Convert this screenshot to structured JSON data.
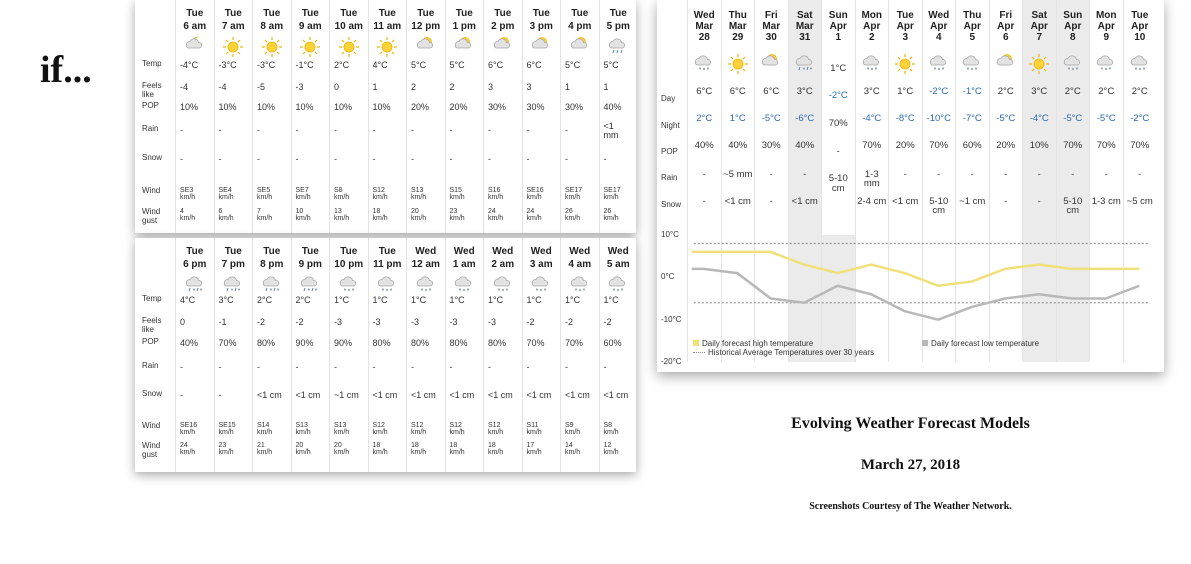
{
  "headline": "if...",
  "hourly_labels": {
    "temp": "Temp",
    "feels": "Feels like",
    "pop": "POP",
    "rain": "Rain",
    "snow": "Snow",
    "wind": "Wind",
    "gust": "Wind gust"
  },
  "hourly_panel_1": [
    {
      "day": "Tue",
      "time": "6 am",
      "icon": "night-partly-cloudy-icon",
      "temp": "-4°C",
      "feels": "-4",
      "pop": "10%",
      "rain": "-",
      "snow": "-",
      "wind": "SE3",
      "gust": "4"
    },
    {
      "day": "Tue",
      "time": "7 am",
      "icon": "sunny-icon",
      "temp": "-3°C",
      "feels": "-4",
      "pop": "10%",
      "rain": "-",
      "snow": "-",
      "wind": "SE4",
      "gust": "6"
    },
    {
      "day": "Tue",
      "time": "8 am",
      "icon": "sunny-icon",
      "temp": "-3°C",
      "feels": "-5",
      "pop": "10%",
      "rain": "-",
      "snow": "-",
      "wind": "SE5",
      "gust": "7"
    },
    {
      "day": "Tue",
      "time": "9 am",
      "icon": "sunny-icon",
      "temp": "-1°C",
      "feels": "-3",
      "pop": "10%",
      "rain": "-",
      "snow": "-",
      "wind": "SE7",
      "gust": "10"
    },
    {
      "day": "Tue",
      "time": "10 am",
      "icon": "sunny-icon",
      "temp": "2°C",
      "feels": "0",
      "pop": "10%",
      "rain": "-",
      "snow": "-",
      "wind": "S8",
      "gust": "13"
    },
    {
      "day": "Tue",
      "time": "11 am",
      "icon": "sunny-icon",
      "temp": "4°C",
      "feels": "1",
      "pop": "10%",
      "rain": "-",
      "snow": "-",
      "wind": "S12",
      "gust": "18"
    },
    {
      "day": "Tue",
      "time": "12 pm",
      "icon": "partly-cloudy-icon",
      "temp": "5°C",
      "feels": "2",
      "pop": "20%",
      "rain": "-",
      "snow": "-",
      "wind": "S13",
      "gust": "20"
    },
    {
      "day": "Tue",
      "time": "1 pm",
      "icon": "partly-cloudy-icon",
      "temp": "5°C",
      "feels": "2",
      "pop": "20%",
      "rain": "-",
      "snow": "-",
      "wind": "S15",
      "gust": "23"
    },
    {
      "day": "Tue",
      "time": "2 pm",
      "icon": "partly-cloudy-icon",
      "temp": "6°C",
      "feels": "3",
      "pop": "30%",
      "rain": "-",
      "snow": "-",
      "wind": "S16",
      "gust": "24"
    },
    {
      "day": "Tue",
      "time": "3 pm",
      "icon": "partly-cloudy-icon",
      "temp": "6°C",
      "feels": "3",
      "pop": "30%",
      "rain": "-",
      "snow": "-",
      "wind": "SE16",
      "gust": "24"
    },
    {
      "day": "Tue",
      "time": "4 pm",
      "icon": "partly-cloudy-icon",
      "temp": "5°C",
      "feels": "1",
      "pop": "30%",
      "rain": "-",
      "snow": "-",
      "wind": "SE17",
      "gust": "26"
    },
    {
      "day": "Tue",
      "time": "5 pm",
      "icon": "rain-cloud-icon",
      "temp": "5°C",
      "feels": "1",
      "pop": "40%",
      "rain": "<1 mm",
      "snow": "-",
      "wind": "SE17",
      "gust": "26"
    }
  ],
  "hourly_panel_2": [
    {
      "day": "Tue",
      "time": "6 pm",
      "icon": "rain-snow-icon",
      "temp": "4°C",
      "feels": "0",
      "pop": "40%",
      "rain": "-",
      "snow": "-",
      "wind": "SE16",
      "gust": "24"
    },
    {
      "day": "Tue",
      "time": "7 pm",
      "icon": "rain-snow-icon",
      "temp": "3°C",
      "feels": "-1",
      "pop": "70%",
      "rain": "-",
      "snow": "-",
      "wind": "SE15",
      "gust": "23"
    },
    {
      "day": "Tue",
      "time": "8 pm",
      "icon": "rain-snow-icon",
      "temp": "2°C",
      "feels": "-2",
      "pop": "80%",
      "rain": "-",
      "snow": "<1 cm",
      "wind": "S14",
      "gust": "21"
    },
    {
      "day": "Tue",
      "time": "9 pm",
      "icon": "rain-snow-icon",
      "temp": "2°C",
      "feels": "-2",
      "pop": "90%",
      "rain": "-",
      "snow": "<1 cm",
      "wind": "S13",
      "gust": "20"
    },
    {
      "day": "Tue",
      "time": "10 pm",
      "icon": "snow-cloud-icon",
      "temp": "1°C",
      "feels": "-3",
      "pop": "90%",
      "rain": "-",
      "snow": "~1 cm",
      "wind": "S13",
      "gust": "20"
    },
    {
      "day": "Tue",
      "time": "11 pm",
      "icon": "snow-cloud-icon",
      "temp": "1°C",
      "feels": "-3",
      "pop": "80%",
      "rain": "-",
      "snow": "<1 cm",
      "wind": "S12",
      "gust": "18"
    },
    {
      "day": "Wed",
      "time": "12 am",
      "icon": "snow-cloud-icon",
      "temp": "1°C",
      "feels": "-3",
      "pop": "80%",
      "rain": "-",
      "snow": "<1 cm",
      "wind": "S12",
      "gust": "18"
    },
    {
      "day": "Wed",
      "time": "1 am",
      "icon": "snow-cloud-icon",
      "temp": "1°C",
      "feels": "-3",
      "pop": "80%",
      "rain": "-",
      "snow": "<1 cm",
      "wind": "S12",
      "gust": "18"
    },
    {
      "day": "Wed",
      "time": "2 am",
      "icon": "snow-cloud-icon",
      "temp": "1°C",
      "feels": "-3",
      "pop": "80%",
      "rain": "-",
      "snow": "<1 cm",
      "wind": "S12",
      "gust": "18"
    },
    {
      "day": "Wed",
      "time": "3 am",
      "icon": "snow-cloud-icon",
      "temp": "1°C",
      "feels": "-2",
      "pop": "70%",
      "rain": "-",
      "snow": "<1 cm",
      "wind": "S11",
      "gust": "17"
    },
    {
      "day": "Wed",
      "time": "4 am",
      "icon": "snow-cloud-icon",
      "temp": "1°C",
      "feels": "-2",
      "pop": "70%",
      "rain": "-",
      "snow": "<1 cm",
      "wind": "S9",
      "gust": "14"
    },
    {
      "day": "Wed",
      "time": "5 am",
      "icon": "snow-cloud-icon",
      "temp": "1°C",
      "feels": "-2",
      "pop": "60%",
      "rain": "-",
      "snow": "<1 cm",
      "wind": "S8",
      "gust": "12"
    }
  ],
  "wind_unit": "km/h",
  "daily_labels": {
    "day": "Day",
    "night": "Night",
    "pop": "POP",
    "rain": "Rain",
    "snow": "Snow"
  },
  "daily": [
    {
      "dow": "Wed",
      "mon": "Mar",
      "date": "28",
      "icon": "snow-cloud-icon",
      "day": "6°C",
      "night": "2°C",
      "pop": "40%",
      "rain": "-",
      "snow": "-",
      "weekend": false
    },
    {
      "dow": "Thu",
      "mon": "Mar",
      "date": "29",
      "icon": "sunny-icon",
      "day": "6°C",
      "night": "1°C",
      "pop": "40%",
      "rain": "~5 mm",
      "snow": "<1 cm",
      "weekend": false
    },
    {
      "dow": "Fri",
      "mon": "Mar",
      "date": "30",
      "icon": "partly-cloudy-icon",
      "day": "6°C",
      "night": "-5°C",
      "pop": "30%",
      "rain": "-",
      "snow": "-",
      "weekend": false
    },
    {
      "dow": "Sat",
      "mon": "Mar",
      "date": "31",
      "icon": "rain-snow-icon",
      "day": "3°C",
      "night": "-6°C",
      "pop": "40%",
      "rain": "-",
      "snow": "<1 cm",
      "weekend": true
    },
    {
      "dow": "Sun",
      "mon": "Apr",
      "date": "1",
      "icon": "",
      "day": "1°C",
      "night": "-2°C",
      "pop": "70%",
      "rain": "-",
      "snow": "5-10 cm",
      "weekend": false,
      "special": true
    },
    {
      "dow": "Mon",
      "mon": "Apr",
      "date": "2",
      "icon": "snow-cloud-icon",
      "day": "3°C",
      "night": "-4°C",
      "pop": "70%",
      "rain": "1-3 mm",
      "snow": "2-4 cm",
      "weekend": false
    },
    {
      "dow": "Tue",
      "mon": "Apr",
      "date": "3",
      "icon": "sunny-icon",
      "day": "1°C",
      "night": "-8°C",
      "pop": "20%",
      "rain": "-",
      "snow": "<1 cm",
      "weekend": false
    },
    {
      "dow": "Wed",
      "mon": "Apr",
      "date": "4",
      "icon": "snow-cloud-icon",
      "day": "-2°C",
      "night": "-10°C",
      "pop": "70%",
      "rain": "-",
      "snow": "5-10 cm",
      "weekend": false
    },
    {
      "dow": "Thu",
      "mon": "Apr",
      "date": "5",
      "icon": "snow-cloud-icon",
      "day": "-1°C",
      "night": "-7°C",
      "pop": "60%",
      "rain": "-",
      "snow": "~1 cm",
      "weekend": false
    },
    {
      "dow": "Fri",
      "mon": "Apr",
      "date": "6",
      "icon": "partly-cloudy-icon",
      "day": "2°C",
      "night": "-5°C",
      "pop": "20%",
      "rain": "-",
      "snow": "-",
      "weekend": false
    },
    {
      "dow": "Sat",
      "mon": "Apr",
      "date": "7",
      "icon": "sunny-icon",
      "day": "3°C",
      "night": "-4°C",
      "pop": "10%",
      "rain": "-",
      "snow": "-",
      "weekend": true
    },
    {
      "dow": "Sun",
      "mon": "Apr",
      "date": "8",
      "icon": "snow-cloud-icon",
      "day": "2°C",
      "night": "-5°C",
      "pop": "70%",
      "rain": "-",
      "snow": "5-10 cm",
      "weekend": true
    },
    {
      "dow": "Mon",
      "mon": "Apr",
      "date": "9",
      "icon": "snow-cloud-icon",
      "day": "2°C",
      "night": "-5°C",
      "pop": "70%",
      "rain": "-",
      "snow": "1-3 cm",
      "weekend": false
    },
    {
      "dow": "Tue",
      "mon": "Apr",
      "date": "10",
      "icon": "snow-cloud-icon",
      "day": "2°C",
      "night": "-2°C",
      "pop": "70%",
      "rain": "-",
      "snow": "~5 cm",
      "weekend": false
    }
  ],
  "chart_data": {
    "type": "line",
    "ytick_labels": [
      "10°C",
      "0°C",
      "-10°C",
      "-20°C"
    ],
    "ylim": [
      -20,
      10
    ],
    "series": [
      {
        "name": "Daily forecast high temperature",
        "color": "#f0e07a",
        "values": [
          6,
          6,
          6,
          3,
          1,
          3,
          1,
          -2,
          -1,
          2,
          3,
          2,
          2,
          2
        ]
      },
      {
        "name": "Daily forecast low temperature",
        "color": "#b8b8b8",
        "values": [
          2,
          1,
          -5,
          -6,
          -2,
          -4,
          -8,
          -10,
          -7,
          -5,
          -4,
          -5,
          -5,
          -2
        ]
      },
      {
        "name": "Historical Average Temperatures over 30 years",
        "color": "#999999",
        "values": [
          8,
          -6
        ]
      }
    ]
  },
  "legend": {
    "high": "Daily forecast high temperature",
    "low": "Daily forecast low temperature",
    "hist": "Historical Average Temperatures over 30 years"
  },
  "caption": {
    "title": "Evolving Weather Forecast Models",
    "date": "March 27, 2018",
    "credit": "Screenshots Courtesy of The Weather Network."
  }
}
